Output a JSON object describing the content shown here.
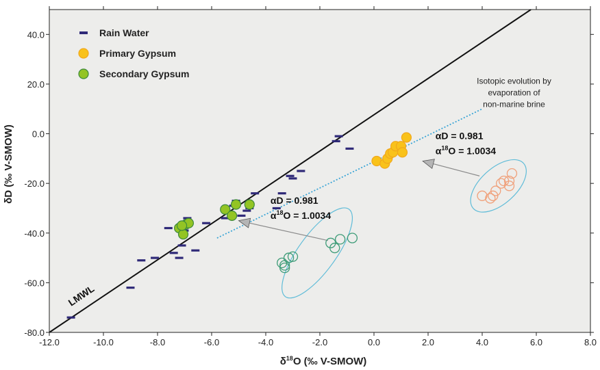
{
  "chart_data": {
    "type": "scatter",
    "title": "",
    "xlabel": {
      "prefix": "δ",
      "sup": "18",
      "rest": "O (‰ V-SMOW)"
    },
    "ylabel": "δD (‰ V-SMOW)",
    "xlim": [
      -12.0,
      8.0
    ],
    "ylim": [
      -80.0,
      50.0
    ],
    "x_ticks": [
      -12.0,
      -10.0,
      -8.0,
      -6.0,
      -4.0,
      -2.0,
      0.0,
      2.0,
      4.0,
      6.0,
      8.0
    ],
    "x_tick_labels": [
      "-12.0",
      "-10.0",
      "-8.0",
      "-6.0",
      "-4.0",
      "-2.0",
      "0.0",
      "2.0",
      "4.0",
      "6.0",
      "8.0"
    ],
    "y_ticks": [
      -80.0,
      -60.0,
      -40.0,
      -20.0,
      0.0,
      20.0,
      40.0
    ],
    "y_tick_labels": [
      "-80.0",
      "-60.0",
      "-40.0",
      "-20.0",
      "0.0",
      "20.0",
      "40.0"
    ],
    "grid": false,
    "legend_position": "top-left",
    "colors": {
      "background": "#ededeb",
      "rain": "#2f2a78",
      "primary_fill": "#f9c21a",
      "primary_stroke": "#f0a81c",
      "secondary_fill": "#93c424",
      "secondary_stroke": "#3e8a3b",
      "orange_open": "#f0a07a",
      "green_open": "#3e9c78",
      "ellipse": "#5fbcd8",
      "evap_line": "#3aa5d6",
      "arrow": "#999999",
      "lmwl": "#111111"
    },
    "lmwl": {
      "label": "LMWL",
      "x": [
        -12.0,
        5.8
      ],
      "y": [
        -80.0,
        50.0
      ]
    },
    "evaporation_line": {
      "x": [
        -5.8,
        4.0
      ],
      "y": [
        -42.0,
        10.0
      ]
    },
    "series": [
      {
        "name": "Rain Water",
        "marker": "dash",
        "x": [
          -11.2,
          -9.0,
          -8.6,
          -8.1,
          -7.6,
          -7.4,
          -7.2,
          -7.1,
          -7.0,
          -7.0,
          -6.9,
          -6.6,
          -6.2,
          -5.5,
          -5.4,
          -5.2,
          -5.1,
          -4.9,
          -4.7,
          -4.6,
          -4.4,
          -3.6,
          -3.4,
          -3.1,
          -3.0,
          -2.7,
          -1.4,
          -1.3,
          -0.9
        ],
        "y": [
          -74.0,
          -62.0,
          -51.0,
          -50.0,
          -38.0,
          -48.0,
          -50.0,
          -45.0,
          -39.0,
          -37.0,
          -34.0,
          -47.0,
          -36.0,
          -34.0,
          -32.0,
          -29.0,
          -27.0,
          -33.0,
          -31.0,
          -30.0,
          -24.0,
          -30.0,
          -24.0,
          -17.0,
          -18.0,
          -15.0,
          -3.0,
          -1.0,
          -6.0
        ]
      },
      {
        "name": "Primary Gypsum",
        "marker": "filled-circle",
        "x": [
          0.1,
          0.4,
          0.5,
          0.6,
          0.7,
          0.8,
          1.0,
          1.05,
          1.2
        ],
        "y": [
          -11.0,
          -12.0,
          -10.0,
          -8.0,
          -7.5,
          -5.0,
          -5.0,
          -7.5,
          -1.5
        ]
      },
      {
        "name": "Secondary Gypsum",
        "marker": "filled-circle",
        "x": [
          -7.2,
          -7.05,
          -6.95,
          -6.85,
          -5.5,
          -5.25,
          -5.1,
          -4.6,
          -7.1
        ],
        "y": [
          -38.0,
          -40.5,
          -36.5,
          -36.0,
          -30.5,
          -33.0,
          -28.5,
          -28.5,
          -37.0
        ]
      },
      {
        "name": "",
        "marker": "open-circle-orange",
        "x": [
          4.0,
          4.3,
          4.5,
          4.7,
          4.8,
          5.0,
          5.0,
          5.1,
          4.4
        ],
        "y": [
          -25.0,
          -26.0,
          -23.0,
          -20.0,
          -19.0,
          -21.0,
          -19.0,
          -16.0,
          -25.0
        ]
      },
      {
        "name": "",
        "marker": "open-circle-green",
        "x": [
          -3.4,
          -3.3,
          -3.15,
          -3.0,
          -1.6,
          -1.45,
          -1.25,
          -0.8,
          -3.3
        ],
        "y": [
          -52.0,
          -54.0,
          -50.0,
          -49.5,
          -44.0,
          -46.0,
          -42.5,
          -42.0,
          -53.0
        ]
      }
    ],
    "ellipses": [
      {
        "cx": 4.6,
        "cy": -21.0,
        "rx_data": 1.25,
        "ry_data": 7.2,
        "rotate": -42
      },
      {
        "cx": -2.1,
        "cy": -48.0,
        "rx_data": 2.0,
        "ry_data": 7.5,
        "rotate": -54
      }
    ],
    "arrows": [
      {
        "from": [
          3.9,
          -17.0
        ],
        "to": [
          1.8,
          -11.0
        ]
      },
      {
        "from": [
          -1.7,
          -43.0
        ],
        "to": [
          -5.0,
          -35.0
        ]
      }
    ],
    "annotations": {
      "evolution_lines": [
        "Isotopic evolution by",
        "evaporation of",
        "non-marine brine"
      ],
      "evolution_pos": [
        5.0,
        13.0
      ],
      "alpha_primary": {
        "line1": "αD = 0.981",
        "line2_prefix": "α",
        "line2_sup": "18",
        "line2_rest": "O = 1.0034",
        "pos": [
          2.4,
          -5.0
        ]
      },
      "alpha_secondary": {
        "line1": "αD = 0.981",
        "line2_prefix": "α",
        "line2_sup": "18",
        "line2_rest": "O = 1.0034",
        "pos": [
          -3.7,
          -31.0
        ]
      }
    }
  }
}
